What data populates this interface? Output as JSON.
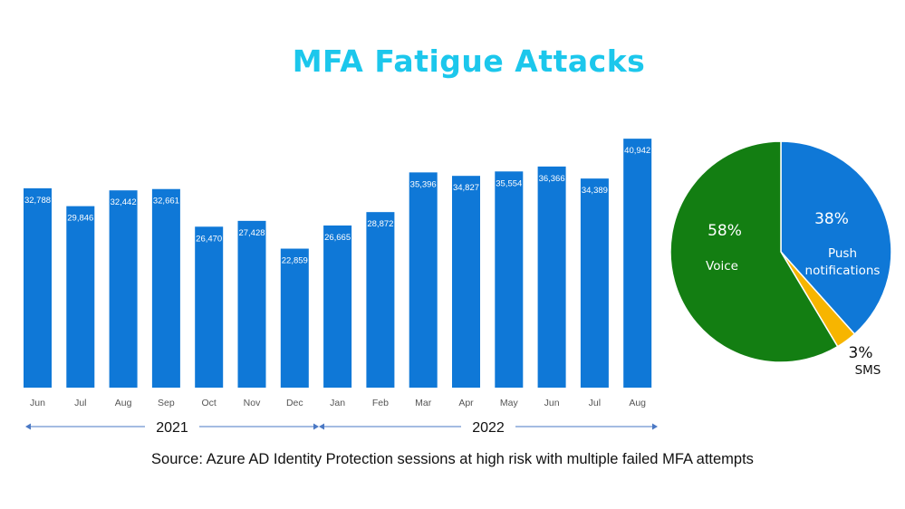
{
  "title": "MFA Fatigue Attacks",
  "source": "Source: Azure AD Identity Protection sessions at high risk with multiple failed MFA attempts",
  "colors": {
    "title": "#1cc7ec",
    "bar": "#0f78d7",
    "push": "#0f78d7",
    "voice": "#137e12",
    "sms": "#f7b500",
    "year_arrow": "#4a78c4"
  },
  "chart_data": [
    {
      "type": "bar",
      "categories": [
        "Jun",
        "Jul",
        "Aug",
        "Sep",
        "Oct",
        "Nov",
        "Dec",
        "Jan",
        "Feb",
        "Mar",
        "Apr",
        "May",
        "Jun",
        "Jul",
        "Aug"
      ],
      "values": [
        32788,
        29846,
        32442,
        32661,
        26470,
        27428,
        22859,
        26665,
        28872,
        35396,
        34827,
        35554,
        36366,
        34389,
        40942
      ],
      "value_labels": [
        "32,788",
        "29,846",
        "32,442",
        "32,661",
        "26,470",
        "27,428",
        "22,859",
        "26,665",
        "28,872",
        "35,396",
        "34,827",
        "35,554",
        "36,366",
        "34,389",
        "40,942"
      ],
      "groups": [
        {
          "label": "2021",
          "start": 0,
          "end": 6
        },
        {
          "label": "2022",
          "start": 7,
          "end": 14
        }
      ],
      "ylim": [
        0,
        42600
      ]
    },
    {
      "type": "pie",
      "slices": [
        {
          "key": "push",
          "pct_label": "38%",
          "name_lines": [
            "Push",
            "notifications"
          ],
          "value": 38
        },
        {
          "key": "sms",
          "pct_label": "3%",
          "name_lines": [
            "SMS"
          ],
          "value": 3
        },
        {
          "key": "voice",
          "pct_label": "58%",
          "name_lines": [
            "Voice"
          ],
          "value": 58
        }
      ]
    }
  ]
}
